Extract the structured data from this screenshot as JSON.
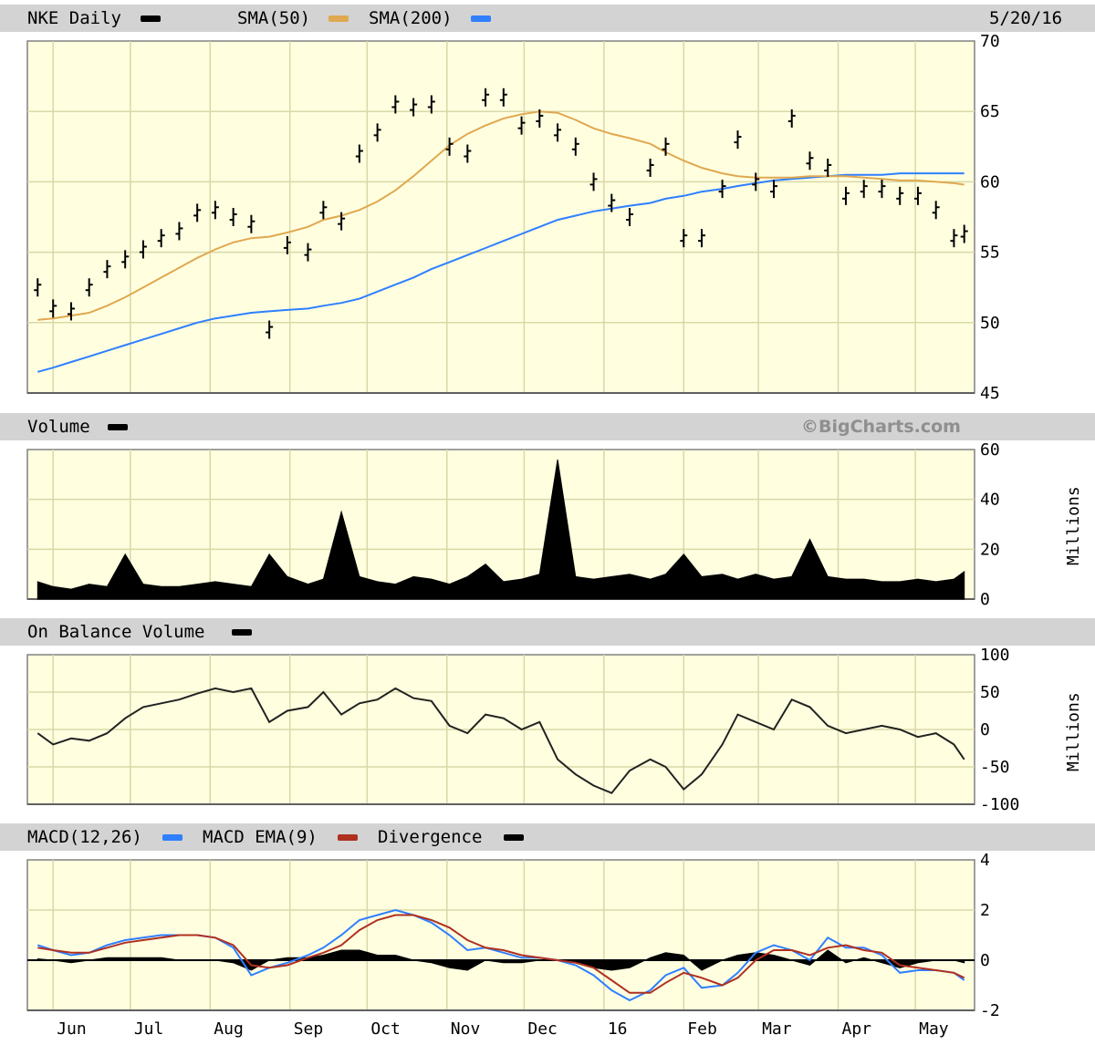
{
  "header": {
    "date": "5/20/16"
  },
  "panels": {
    "price": {
      "title": "NKE Daily",
      "legend": [
        {
          "label": "SMA(50)",
          "color": "#e0a850"
        },
        {
          "label": "SMA(200)",
          "color": "#2f7fff"
        }
      ],
      "title_swatch_color": "#000000"
    },
    "volume": {
      "title": "Volume",
      "copyright": "©BigCharts.com",
      "unit": "Millions"
    },
    "obv": {
      "title": "On Balance Volume",
      "unit": "Millions"
    },
    "macd": {
      "legend": [
        {
          "label": "MACD(12,26)",
          "color": "#2f7fff"
        },
        {
          "label": "MACD EMA(9)",
          "color": "#b03020"
        },
        {
          "label": "Divergence",
          "color": "#000000"
        }
      ]
    }
  },
  "chart_data": [
    {
      "type": "line",
      "panel": "price",
      "title": "NKE Daily",
      "ylim": [
        45,
        70
      ],
      "yticks": [
        "70",
        "65",
        "60",
        "55",
        "50",
        "45"
      ],
      "x": [
        "2015-05-26",
        "2015-06-01",
        "2015-06-08",
        "2015-06-15",
        "2015-06-22",
        "2015-06-29",
        "2015-07-06",
        "2015-07-13",
        "2015-07-20",
        "2015-07-27",
        "2015-08-03",
        "2015-08-10",
        "2015-08-17",
        "2015-08-24",
        "2015-08-31",
        "2015-09-08",
        "2015-09-14",
        "2015-09-21",
        "2015-09-28",
        "2015-10-05",
        "2015-10-12",
        "2015-10-19",
        "2015-10-26",
        "2015-11-02",
        "2015-11-09",
        "2015-11-16",
        "2015-11-23",
        "2015-11-30",
        "2015-12-07",
        "2015-12-14",
        "2015-12-21",
        "2015-12-28",
        "2016-01-04",
        "2016-01-11",
        "2016-01-19",
        "2016-01-25",
        "2016-02-01",
        "2016-02-08",
        "2016-02-16",
        "2016-02-22",
        "2016-02-29",
        "2016-03-07",
        "2016-03-14",
        "2016-03-21",
        "2016-03-28",
        "2016-04-04",
        "2016-04-11",
        "2016-04-18",
        "2016-04-25",
        "2016-05-02",
        "2016-05-09",
        "2016-05-16",
        "2016-05-20"
      ],
      "series": [
        {
          "name": "NKE Daily",
          "values": [
            52.5,
            51.0,
            50.8,
            52.5,
            53.8,
            54.5,
            55.2,
            56.0,
            56.5,
            57.8,
            58.0,
            57.5,
            57.0,
            49.5,
            55.5,
            55.0,
            58.0,
            57.2,
            62.0,
            63.5,
            65.5,
            65.3,
            65.5,
            62.5,
            62.0,
            66.0,
            66.0,
            64.0,
            64.5,
            63.5,
            62.5,
            60.0,
            58.5,
            57.5,
            61.0,
            62.5,
            56.0,
            56.0,
            59.5,
            63.0,
            60.0,
            59.5,
            64.5,
            61.5,
            61.0,
            59.0,
            59.5,
            59.5,
            59.0,
            59.0,
            58.0,
            56.0,
            56.3
          ]
        },
        {
          "name": "SMA(50)",
          "values": [
            50.2,
            50.3,
            50.5,
            50.7,
            51.2,
            51.8,
            52.5,
            53.2,
            53.9,
            54.6,
            55.2,
            55.7,
            56.0,
            56.1,
            56.4,
            56.8,
            57.3,
            57.6,
            58.0,
            58.6,
            59.4,
            60.4,
            61.5,
            62.6,
            63.4,
            64.0,
            64.5,
            64.8,
            65.0,
            64.9,
            64.4,
            63.8,
            63.4,
            63.1,
            62.7,
            62.1,
            61.5,
            61.0,
            60.6,
            60.4,
            60.3,
            60.3,
            60.3,
            60.4,
            60.4,
            60.4,
            60.3,
            60.2,
            60.1,
            60.1,
            60.0,
            59.9,
            59.8
          ]
        },
        {
          "name": "SMA(200)",
          "values": [
            46.5,
            46.8,
            47.2,
            47.6,
            48.0,
            48.4,
            48.8,
            49.2,
            49.6,
            50.0,
            50.3,
            50.5,
            50.7,
            50.8,
            50.9,
            51.0,
            51.2,
            51.4,
            51.7,
            52.2,
            52.7,
            53.2,
            53.8,
            54.3,
            54.8,
            55.3,
            55.8,
            56.3,
            56.8,
            57.3,
            57.6,
            57.9,
            58.1,
            58.3,
            58.5,
            58.8,
            59.0,
            59.3,
            59.5,
            59.7,
            59.9,
            60.1,
            60.2,
            60.3,
            60.4,
            60.5,
            60.5,
            60.5,
            60.6,
            60.6,
            60.6,
            60.6,
            60.6
          ]
        }
      ]
    },
    {
      "type": "area",
      "panel": "volume",
      "title": "Volume",
      "ylabel": "Millions",
      "ylim": [
        0,
        60
      ],
      "yticks": [
        "60",
        "40",
        "20",
        "0"
      ],
      "x": [
        "2015-05-26",
        "2015-06-01",
        "2015-06-08",
        "2015-06-15",
        "2015-06-22",
        "2015-06-29",
        "2015-07-06",
        "2015-07-13",
        "2015-07-20",
        "2015-07-27",
        "2015-08-03",
        "2015-08-10",
        "2015-08-17",
        "2015-08-24",
        "2015-08-31",
        "2015-09-08",
        "2015-09-14",
        "2015-09-21",
        "2015-09-28",
        "2015-10-05",
        "2015-10-12",
        "2015-10-19",
        "2015-10-26",
        "2015-11-02",
        "2015-11-09",
        "2015-11-16",
        "2015-11-23",
        "2015-11-30",
        "2015-12-07",
        "2015-12-14",
        "2015-12-21",
        "2015-12-28",
        "2016-01-04",
        "2016-01-11",
        "2016-01-19",
        "2016-01-25",
        "2016-02-01",
        "2016-02-08",
        "2016-02-16",
        "2016-02-22",
        "2016-02-29",
        "2016-03-07",
        "2016-03-14",
        "2016-03-21",
        "2016-03-28",
        "2016-04-04",
        "2016-04-11",
        "2016-04-18",
        "2016-04-25",
        "2016-05-02",
        "2016-05-09",
        "2016-05-16",
        "2016-05-20"
      ],
      "series": [
        {
          "name": "Volume",
          "values": [
            7,
            5,
            4,
            6,
            5,
            18,
            6,
            5,
            5,
            6,
            7,
            6,
            5,
            18,
            9,
            6,
            8,
            35,
            9,
            7,
            6,
            9,
            8,
            6,
            9,
            14,
            7,
            8,
            10,
            56,
            9,
            8,
            9,
            10,
            8,
            10,
            18,
            9,
            10,
            8,
            10,
            8,
            9,
            24,
            9,
            8,
            8,
            7,
            7,
            8,
            7,
            8,
            11
          ]
        }
      ]
    },
    {
      "type": "line",
      "panel": "obv",
      "title": "On Balance Volume",
      "ylabel": "Millions",
      "ylim": [
        -100,
        100
      ],
      "yticks": [
        "100",
        "50",
        "0",
        "-50",
        "-100"
      ],
      "x": [
        "2015-05-26",
        "2015-06-01",
        "2015-06-08",
        "2015-06-15",
        "2015-06-22",
        "2015-06-29",
        "2015-07-06",
        "2015-07-13",
        "2015-07-20",
        "2015-07-27",
        "2015-08-03",
        "2015-08-10",
        "2015-08-17",
        "2015-08-24",
        "2015-08-31",
        "2015-09-08",
        "2015-09-14",
        "2015-09-21",
        "2015-09-28",
        "2015-10-05",
        "2015-10-12",
        "2015-10-19",
        "2015-10-26",
        "2015-11-02",
        "2015-11-09",
        "2015-11-16",
        "2015-11-23",
        "2015-11-30",
        "2015-12-07",
        "2015-12-14",
        "2015-12-21",
        "2015-12-28",
        "2016-01-04",
        "2016-01-11",
        "2016-01-19",
        "2016-01-25",
        "2016-02-01",
        "2016-02-08",
        "2016-02-16",
        "2016-02-22",
        "2016-02-29",
        "2016-03-07",
        "2016-03-14",
        "2016-03-21",
        "2016-03-28",
        "2016-04-04",
        "2016-04-11",
        "2016-04-18",
        "2016-04-25",
        "2016-05-02",
        "2016-05-09",
        "2016-05-16",
        "2016-05-20"
      ],
      "series": [
        {
          "name": "On Balance Volume",
          "values": [
            -5,
            -20,
            -12,
            -15,
            -5,
            15,
            30,
            35,
            40,
            48,
            55,
            50,
            55,
            10,
            25,
            30,
            50,
            20,
            35,
            40,
            55,
            42,
            38,
            5,
            -5,
            20,
            15,
            0,
            10,
            -40,
            -60,
            -75,
            -85,
            -55,
            -40,
            -50,
            -80,
            -60,
            -20,
            20,
            10,
            0,
            40,
            30,
            5,
            -5,
            0,
            5,
            0,
            -10,
            -5,
            -20,
            -40
          ]
        }
      ]
    },
    {
      "type": "line",
      "panel": "macd",
      "ylim": [
        -2,
        4
      ],
      "yticks": [
        "4",
        "2",
        "0",
        "-2"
      ],
      "xticks": [
        "Jun",
        "Jul",
        "Aug",
        "Sep",
        "Oct",
        "Nov",
        "Dec",
        "16",
        "Feb",
        "Mar",
        "Apr",
        "May"
      ],
      "x": [
        "2015-05-26",
        "2015-06-01",
        "2015-06-08",
        "2015-06-15",
        "2015-06-22",
        "2015-06-29",
        "2015-07-06",
        "2015-07-13",
        "2015-07-20",
        "2015-07-27",
        "2015-08-03",
        "2015-08-10",
        "2015-08-17",
        "2015-08-24",
        "2015-08-31",
        "2015-09-08",
        "2015-09-14",
        "2015-09-21",
        "2015-09-28",
        "2015-10-05",
        "2015-10-12",
        "2015-10-19",
        "2015-10-26",
        "2015-11-02",
        "2015-11-09",
        "2015-11-16",
        "2015-11-23",
        "2015-11-30",
        "2015-12-07",
        "2015-12-14",
        "2015-12-21",
        "2015-12-28",
        "2016-01-04",
        "2016-01-11",
        "2016-01-19",
        "2016-01-25",
        "2016-02-01",
        "2016-02-08",
        "2016-02-16",
        "2016-02-22",
        "2016-02-29",
        "2016-03-07",
        "2016-03-14",
        "2016-03-21",
        "2016-03-28",
        "2016-04-04",
        "2016-04-11",
        "2016-04-18",
        "2016-04-25",
        "2016-05-02",
        "2016-05-09",
        "2016-05-16",
        "2016-05-20"
      ],
      "series": [
        {
          "name": "MACD(12,26)",
          "values": [
            0.6,
            0.4,
            0.2,
            0.3,
            0.6,
            0.8,
            0.9,
            1.0,
            1.0,
            1.0,
            0.9,
            0.5,
            -0.6,
            -0.3,
            -0.1,
            0.2,
            0.5,
            1.0,
            1.6,
            1.8,
            2.0,
            1.8,
            1.5,
            1.0,
            0.4,
            0.5,
            0.3,
            0.1,
            0.1,
            0.0,
            -0.2,
            -0.6,
            -1.2,
            -1.6,
            -1.2,
            -0.6,
            -0.3,
            -1.1,
            -1.0,
            -0.5,
            0.3,
            0.6,
            0.4,
            0.0,
            0.9,
            0.5,
            0.5,
            0.2,
            -0.5,
            -0.4,
            -0.4,
            -0.5,
            -0.8
          ]
        },
        {
          "name": "MACD EMA(9)",
          "values": [
            0.5,
            0.4,
            0.3,
            0.3,
            0.5,
            0.7,
            0.8,
            0.9,
            1.0,
            1.0,
            0.9,
            0.6,
            -0.2,
            -0.3,
            -0.2,
            0.1,
            0.3,
            0.6,
            1.2,
            1.6,
            1.8,
            1.8,
            1.6,
            1.3,
            0.8,
            0.5,
            0.4,
            0.2,
            0.1,
            0.0,
            -0.1,
            -0.3,
            -0.8,
            -1.3,
            -1.3,
            -0.9,
            -0.5,
            -0.7,
            -1.0,
            -0.7,
            0.0,
            0.4,
            0.4,
            0.2,
            0.5,
            0.6,
            0.4,
            0.3,
            -0.2,
            -0.3,
            -0.4,
            -0.5,
            -0.7
          ]
        },
        {
          "name": "Divergence",
          "values": [
            0.05,
            0.0,
            -0.1,
            0.0,
            0.1,
            0.1,
            0.1,
            0.1,
            0.0,
            0.0,
            0.0,
            -0.1,
            -0.4,
            0.0,
            0.1,
            0.1,
            0.2,
            0.4,
            0.4,
            0.2,
            0.2,
            0.0,
            -0.1,
            -0.3,
            -0.4,
            0.0,
            -0.1,
            -0.1,
            0.0,
            0.0,
            -0.1,
            -0.3,
            -0.4,
            -0.3,
            0.1,
            0.3,
            0.2,
            -0.4,
            0.0,
            0.2,
            0.3,
            0.2,
            0.0,
            -0.2,
            0.4,
            -0.1,
            0.1,
            -0.1,
            -0.3,
            -0.1,
            0.0,
            0.0,
            -0.1
          ]
        }
      ]
    }
  ]
}
